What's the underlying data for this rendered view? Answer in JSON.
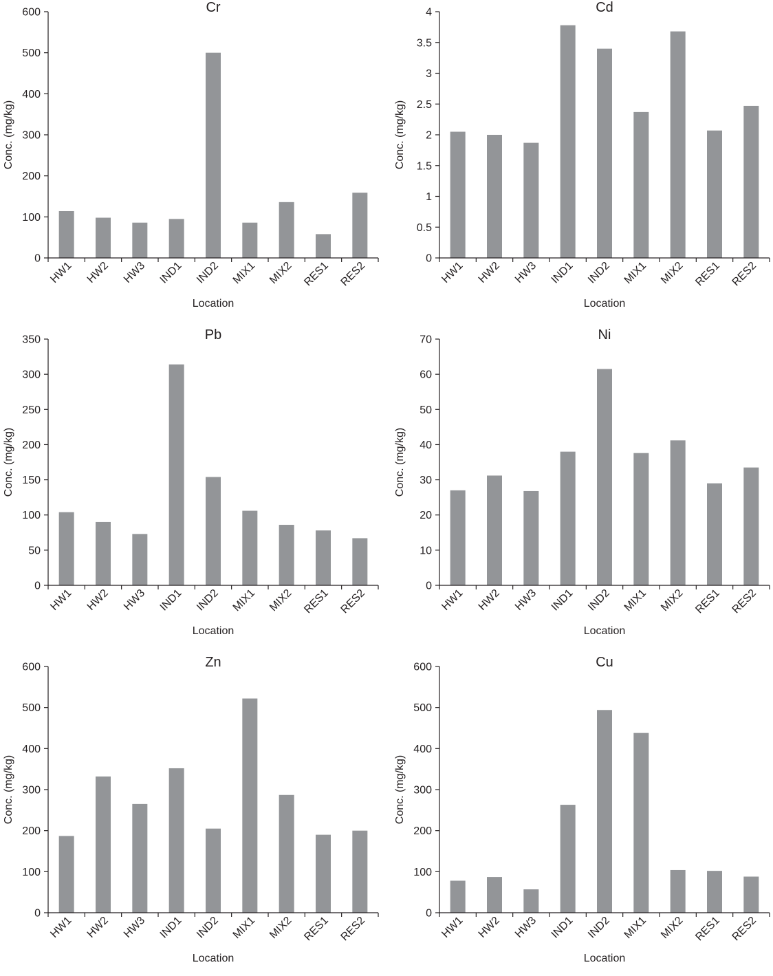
{
  "figure": {
    "bar_color": "#939598",
    "axis_color": "#231f20"
  },
  "chart_data": [
    {
      "type": "bar",
      "title": "Cr",
      "xlabel": "Location",
      "ylabel": "Conc. (mg/kg)",
      "categories": [
        "HW1",
        "HW2",
        "HW3",
        "IND1",
        "IND2",
        "MIX1",
        "MIX2",
        "RES1",
        "RES2"
      ],
      "values": [
        114,
        98,
        86,
        95,
        500,
        86,
        136,
        58,
        159
      ],
      "ylim": [
        0,
        600
      ],
      "yticks": [
        0,
        100,
        200,
        300,
        400,
        500,
        600
      ],
      "ytick_labels": [
        "0",
        "100",
        "200",
        "300",
        "400",
        "500",
        "600"
      ],
      "grid": false,
      "legend": "none"
    },
    {
      "type": "bar",
      "title": "Cd",
      "xlabel": "Location",
      "ylabel": "Conc. (mg/kg)",
      "categories": [
        "HW1",
        "HW2",
        "HW3",
        "IND1",
        "IND2",
        "MIX1",
        "MIX2",
        "RES1",
        "RES2"
      ],
      "values": [
        2.05,
        2.0,
        1.87,
        3.78,
        3.4,
        2.37,
        3.68,
        2.07,
        2.47
      ],
      "ylim": [
        0,
        4
      ],
      "yticks": [
        0,
        0.5,
        1,
        1.5,
        2,
        2.5,
        3,
        3.5,
        4
      ],
      "ytick_labels": [
        "0",
        "0.5",
        "1",
        "1.5",
        "2",
        "2.5",
        "3",
        "3.5",
        "4"
      ],
      "grid": false,
      "legend": "none"
    },
    {
      "type": "bar",
      "title": "Pb",
      "xlabel": "Location",
      "ylabel": "Conc. (mg/kg)",
      "categories": [
        "HW1",
        "HW2",
        "HW3",
        "IND1",
        "IND2",
        "MIX1",
        "MIX2",
        "RES1",
        "RES2"
      ],
      "values": [
        104,
        90,
        73,
        314,
        154,
        106,
        86,
        78,
        67
      ],
      "ylim": [
        0,
        350
      ],
      "yticks": [
        0,
        50,
        100,
        150,
        200,
        250,
        300,
        350
      ],
      "ytick_labels": [
        "0",
        "50",
        "100",
        "150",
        "200",
        "250",
        "300",
        "350"
      ],
      "grid": false,
      "legend": "none"
    },
    {
      "type": "bar",
      "title": "Ni",
      "xlabel": "Location",
      "ylabel": "Conc. (mg/kg)",
      "categories": [
        "HW1",
        "HW2",
        "HW3",
        "IND1",
        "IND2",
        "MIX1",
        "MIX2",
        "RES1",
        "RES2"
      ],
      "values": [
        27,
        31.2,
        26.8,
        38,
        61.5,
        37.6,
        41.2,
        29,
        33.5
      ],
      "ylim": [
        0,
        70
      ],
      "yticks": [
        0,
        10,
        20,
        30,
        40,
        50,
        60,
        70
      ],
      "ytick_labels": [
        "0",
        "10",
        "20",
        "30",
        "40",
        "50",
        "60",
        "70"
      ],
      "grid": false,
      "legend": "none"
    },
    {
      "type": "bar",
      "title": "Zn",
      "xlabel": "Location",
      "ylabel": "Conc. (mg/kg)",
      "categories": [
        "HW1",
        "HW2",
        "HW3",
        "IND1",
        "IND2",
        "MIX1",
        "MIX2",
        "RES1",
        "RES2"
      ],
      "values": [
        187,
        332,
        265,
        352,
        205,
        522,
        287,
        190,
        200
      ],
      "ylim": [
        0,
        600
      ],
      "yticks": [
        0,
        100,
        200,
        300,
        400,
        500,
        600
      ],
      "ytick_labels": [
        "0",
        "100",
        "200",
        "300",
        "400",
        "500",
        "600"
      ],
      "grid": false,
      "legend": "none"
    },
    {
      "type": "bar",
      "title": "Cu",
      "xlabel": "Location",
      "ylabel": "Conc. (mg/kg)",
      "categories": [
        "HW1",
        "HW2",
        "HW3",
        "IND1",
        "IND2",
        "MIX1",
        "MIX2",
        "RES1",
        "RES2"
      ],
      "values": [
        78,
        87,
        57,
        263,
        494,
        438,
        104,
        102,
        88
      ],
      "ylim": [
        0,
        600
      ],
      "yticks": [
        0,
        100,
        200,
        300,
        400,
        500,
        600
      ],
      "ytick_labels": [
        "0",
        "100",
        "200",
        "300",
        "400",
        "500",
        "600"
      ],
      "grid": false,
      "legend": "none"
    }
  ]
}
